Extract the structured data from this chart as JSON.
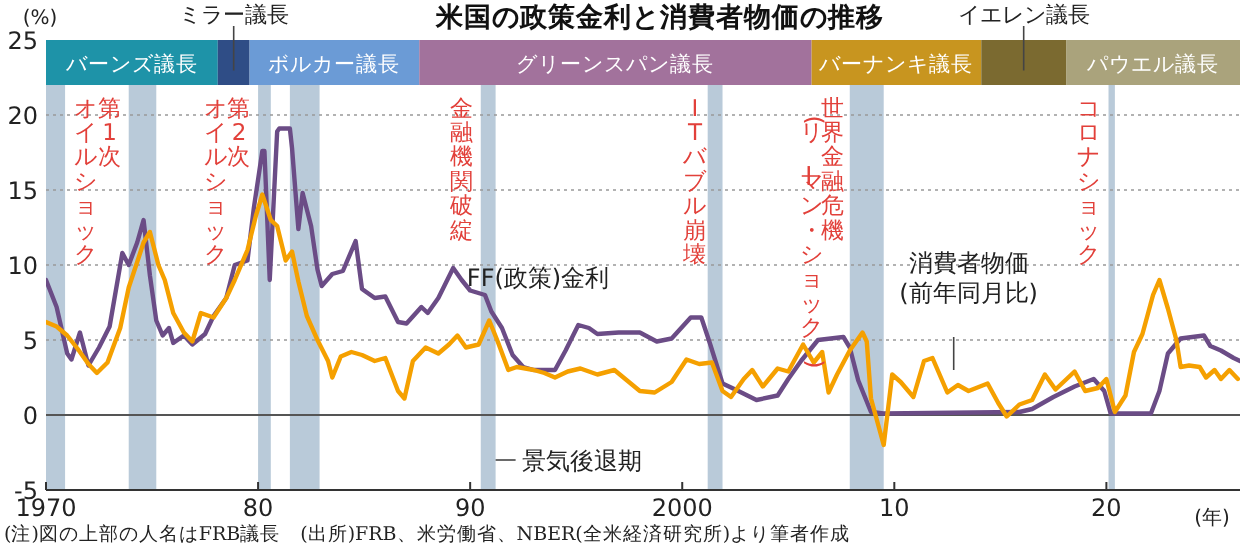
{
  "chart_data": {
    "type": "line",
    "title": "米国の政策金利と消費者物価の推移",
    "ylabel": "(%)",
    "xlabel": "(年)",
    "xlim": [
      1970,
      2026.3
    ],
    "ylim": [
      -5,
      25
    ],
    "xticks": [
      1970,
      {
        "value": 1980,
        "label": "80"
      },
      {
        "value": 1990,
        "label": "90"
      },
      2000,
      {
        "value": 2010,
        "label": "10"
      },
      {
        "value": 2020,
        "label": "20"
      }
    ],
    "yticks": [
      -5,
      0,
      5,
      10,
      15,
      20,
      25
    ],
    "grid": "y",
    "line_style": "solid",
    "series": [
      {
        "name": "FF(政策)金利",
        "color": "#6b4c86",
        "x": [
          1970.0,
          1970.5,
          1971.0,
          1971.2,
          1971.6,
          1972.0,
          1972.5,
          1973.0,
          1973.6,
          1973.9,
          1974.3,
          1974.6,
          1974.9,
          1975.2,
          1975.5,
          1975.8,
          1976.0,
          1976.5,
          1976.9,
          1977.5,
          1977.9,
          1978.5,
          1978.9,
          1979.5,
          1979.8,
          1980.2,
          1980.3,
          1980.55,
          1980.9,
          1981.0,
          1981.5,
          1981.6,
          1981.9,
          1982.1,
          1982.5,
          1982.8,
          1983.0,
          1983.5,
          1984.0,
          1984.6,
          1984.9,
          1985.5,
          1986.0,
          1986.6,
          1987.0,
          1987.7,
          1988.0,
          1988.5,
          1989.2,
          1989.6,
          1990.0,
          1990.7,
          1991.0,
          1991.5,
          1992.0,
          1992.5,
          1993.0,
          1994.0,
          1994.5,
          1995.1,
          1995.6,
          1996.0,
          1997.0,
          1998.0,
          1998.8,
          1999.5,
          2000.4,
          2000.9,
          2001.3,
          2001.9,
          2002.5,
          2003.5,
          2004.5,
          2005.0,
          2005.6,
          2006.4,
          2007.6,
          2007.9,
          2008.3,
          2008.9,
          2009.5,
          2015.9,
          2016.5,
          2017.5,
          2018.5,
          2019.4,
          2019.9,
          2020.2,
          2022.1,
          2022.5,
          2022.9,
          2023.5,
          2024.6,
          2024.9,
          2025.4,
          2026.0,
          2026.3
        ],
        "values": [
          9.0,
          7.2,
          4.1,
          3.7,
          5.5,
          3.3,
          4.5,
          5.9,
          10.8,
          10.0,
          11.5,
          13.0,
          9.3,
          6.3,
          5.3,
          5.8,
          4.8,
          5.3,
          4.7,
          5.4,
          6.6,
          7.8,
          10.0,
          10.3,
          13.8,
          17.6,
          17.6,
          9.0,
          18.9,
          19.1,
          19.1,
          17.8,
          12.4,
          14.8,
          12.6,
          9.7,
          8.6,
          9.4,
          9.6,
          11.6,
          8.4,
          7.8,
          7.9,
          6.2,
          6.1,
          7.2,
          6.8,
          7.8,
          9.8,
          9.0,
          8.3,
          8.0,
          6.9,
          5.8,
          4.0,
          3.2,
          3.0,
          3.0,
          4.3,
          6.0,
          5.8,
          5.4,
          5.5,
          5.5,
          4.9,
          5.1,
          6.5,
          6.5,
          4.8,
          2.1,
          1.7,
          1.0,
          1.3,
          2.4,
          3.6,
          5.0,
          5.2,
          4.5,
          2.3,
          0.2,
          0.1,
          0.2,
          0.4,
          1.2,
          1.9,
          2.4,
          1.6,
          0.1,
          0.1,
          1.6,
          4.1,
          5.1,
          5.3,
          4.6,
          4.3,
          3.8,
          3.6
        ]
      },
      {
        "name": "消費者物価(前年同月比)",
        "color": "#f5a000",
        "x": [
          1970.0,
          1970.5,
          1971.0,
          1971.5,
          1972.0,
          1972.4,
          1972.9,
          1973.5,
          1973.9,
          1974.3,
          1974.6,
          1974.9,
          1975.3,
          1975.6,
          1976.0,
          1976.5,
          1976.9,
          1977.3,
          1977.9,
          1978.5,
          1978.9,
          1979.5,
          1979.9,
          1980.2,
          1980.6,
          1980.9,
          1981.3,
          1981.6,
          1981.9,
          1982.3,
          1982.8,
          1983.3,
          1983.5,
          1983.9,
          1984.4,
          1984.9,
          1985.5,
          1986.0,
          1986.6,
          1986.9,
          1987.3,
          1987.9,
          1988.5,
          1989.0,
          1989.4,
          1989.8,
          1990.4,
          1990.9,
          1991.3,
          1991.8,
          1992.2,
          1993.0,
          1993.5,
          1994.0,
          1994.6,
          1995.2,
          1996.0,
          1996.8,
          1997.4,
          1998.0,
          1998.7,
          1999.5,
          2000.2,
          2000.8,
          2001.4,
          2001.9,
          2002.3,
          2002.9,
          2003.3,
          2003.8,
          2004.5,
          2005.0,
          2005.7,
          2006.2,
          2006.6,
          2006.9,
          2007.3,
          2007.9,
          2008.5,
          2008.7,
          2008.9,
          2009.5,
          2009.9,
          2010.3,
          2010.9,
          2011.4,
          2011.8,
          2012.5,
          2013.0,
          2013.5,
          2014.4,
          2014.9,
          2015.3,
          2015.9,
          2016.5,
          2017.1,
          2017.6,
          2018.5,
          2019.0,
          2019.6,
          2020.0,
          2020.4,
          2020.9,
          2021.3,
          2021.7,
          2022.2,
          2022.5,
          2022.9,
          2023.3,
          2023.5,
          2023.9,
          2024.4,
          2024.7,
          2025.1,
          2025.4,
          2025.8,
          2026.0,
          2026.2
        ],
        "values": [
          6.2,
          5.9,
          5.3,
          4.4,
          3.4,
          2.8,
          3.5,
          5.8,
          8.5,
          10.2,
          11.5,
          12.2,
          10.0,
          9.0,
          6.8,
          5.5,
          4.9,
          6.8,
          6.5,
          7.8,
          9.0,
          11.0,
          13.3,
          14.7,
          13.0,
          12.6,
          10.3,
          10.9,
          8.9,
          6.6,
          5.0,
          3.6,
          2.5,
          3.9,
          4.2,
          4.0,
          3.6,
          3.8,
          1.6,
          1.1,
          3.6,
          4.5,
          4.1,
          4.7,
          5.3,
          4.5,
          4.7,
          6.3,
          4.9,
          3.0,
          3.2,
          3.0,
          2.8,
          2.5,
          2.9,
          3.1,
          2.7,
          3.0,
          2.3,
          1.6,
          1.5,
          2.2,
          3.7,
          3.4,
          3.5,
          1.6,
          1.2,
          2.4,
          3.0,
          1.9,
          3.1,
          2.9,
          4.7,
          3.5,
          4.2,
          1.5,
          2.7,
          4.3,
          5.5,
          4.9,
          1.1,
          -2.0,
          2.7,
          2.2,
          1.2,
          3.6,
          3.8,
          1.5,
          2.0,
          1.6,
          2.1,
          0.8,
          -0.1,
          0.7,
          1.0,
          2.7,
          1.7,
          2.9,
          1.6,
          1.8,
          2.4,
          0.2,
          1.3,
          4.2,
          5.4,
          8.0,
          9.0,
          7.1,
          5.0,
          3.2,
          3.3,
          3.2,
          2.5,
          3.0,
          2.4,
          3.0,
          2.7,
          2.4
        ]
      }
    ],
    "ref_lines": [
      {
        "axis": "y",
        "value": 0,
        "color": "#555555"
      }
    ],
    "bands": [
      {
        "axis": "x",
        "from": 1970.0,
        "to": 1970.9,
        "label": null,
        "color": "#b9cad9"
      },
      {
        "axis": "x",
        "from": 1973.9,
        "to": 1975.2,
        "label": null,
        "color": "#b9cad9"
      },
      {
        "axis": "x",
        "from": 1980.0,
        "to": 1980.6,
        "label": null,
        "color": "#b9cad9"
      },
      {
        "axis": "x",
        "from": 1981.5,
        "to": 1982.9,
        "label": null,
        "color": "#b9cad9"
      },
      {
        "axis": "x",
        "from": 1990.5,
        "to": 1991.2,
        "label": null,
        "color": "#b9cad9"
      },
      {
        "axis": "x",
        "from": 2001.2,
        "to": 2001.9,
        "label": null,
        "color": "#b9cad9"
      },
      {
        "axis": "x",
        "from": 2007.9,
        "to": 2009.5,
        "label": null,
        "color": "#b9cad9"
      },
      {
        "axis": "x",
        "from": 2020.1,
        "to": 2020.4,
        "label": null,
        "color": "#b9cad9"
      },
      {
        "axis": "x",
        "from": 1970.0,
        "to": 1978.1,
        "label": "バーンズ議長",
        "color": "#1e93a8"
      },
      {
        "axis": "x",
        "from": 1978.1,
        "to": 1979.6,
        "label": "ミラー議長",
        "color": "#2f4d86"
      },
      {
        "axis": "x",
        "from": 1979.6,
        "to": 1987.6,
        "label": "ボルカー議長",
        "color": "#6b9bd6"
      },
      {
        "axis": "x",
        "from": 1987.6,
        "to": 2006.1,
        "label": "グリーンスパン議長",
        "color": "#a2729c"
      },
      {
        "axis": "x",
        "from": 2006.1,
        "to": 2014.1,
        "label": "バーナンキ議長",
        "color": "#c8951f"
      },
      {
        "axis": "x",
        "from": 2014.1,
        "to": 2018.1,
        "label": "イエレン議長",
        "color": "#7b6a30"
      },
      {
        "axis": "x",
        "from": 2018.1,
        "to": 2026.3,
        "label": "パウエル議長",
        "color": "#aaa37c"
      }
    ],
    "annotations": [
      "第1次",
      "オイルショック",
      "第2次",
      "オイルショック",
      "金融機関破綻",
      "ITバブル崩壊",
      "世界金融危機",
      "(リーマン・ショック)",
      "コロナショック",
      {
        "text": "景気後退期",
        "x": 1991.2,
        "y": -3
      },
      "(注)図の上部の人名はFRB議長　(出所)FRB、米労働省、NBER(全米経済研究所)より筆者作成"
    ]
  }
}
